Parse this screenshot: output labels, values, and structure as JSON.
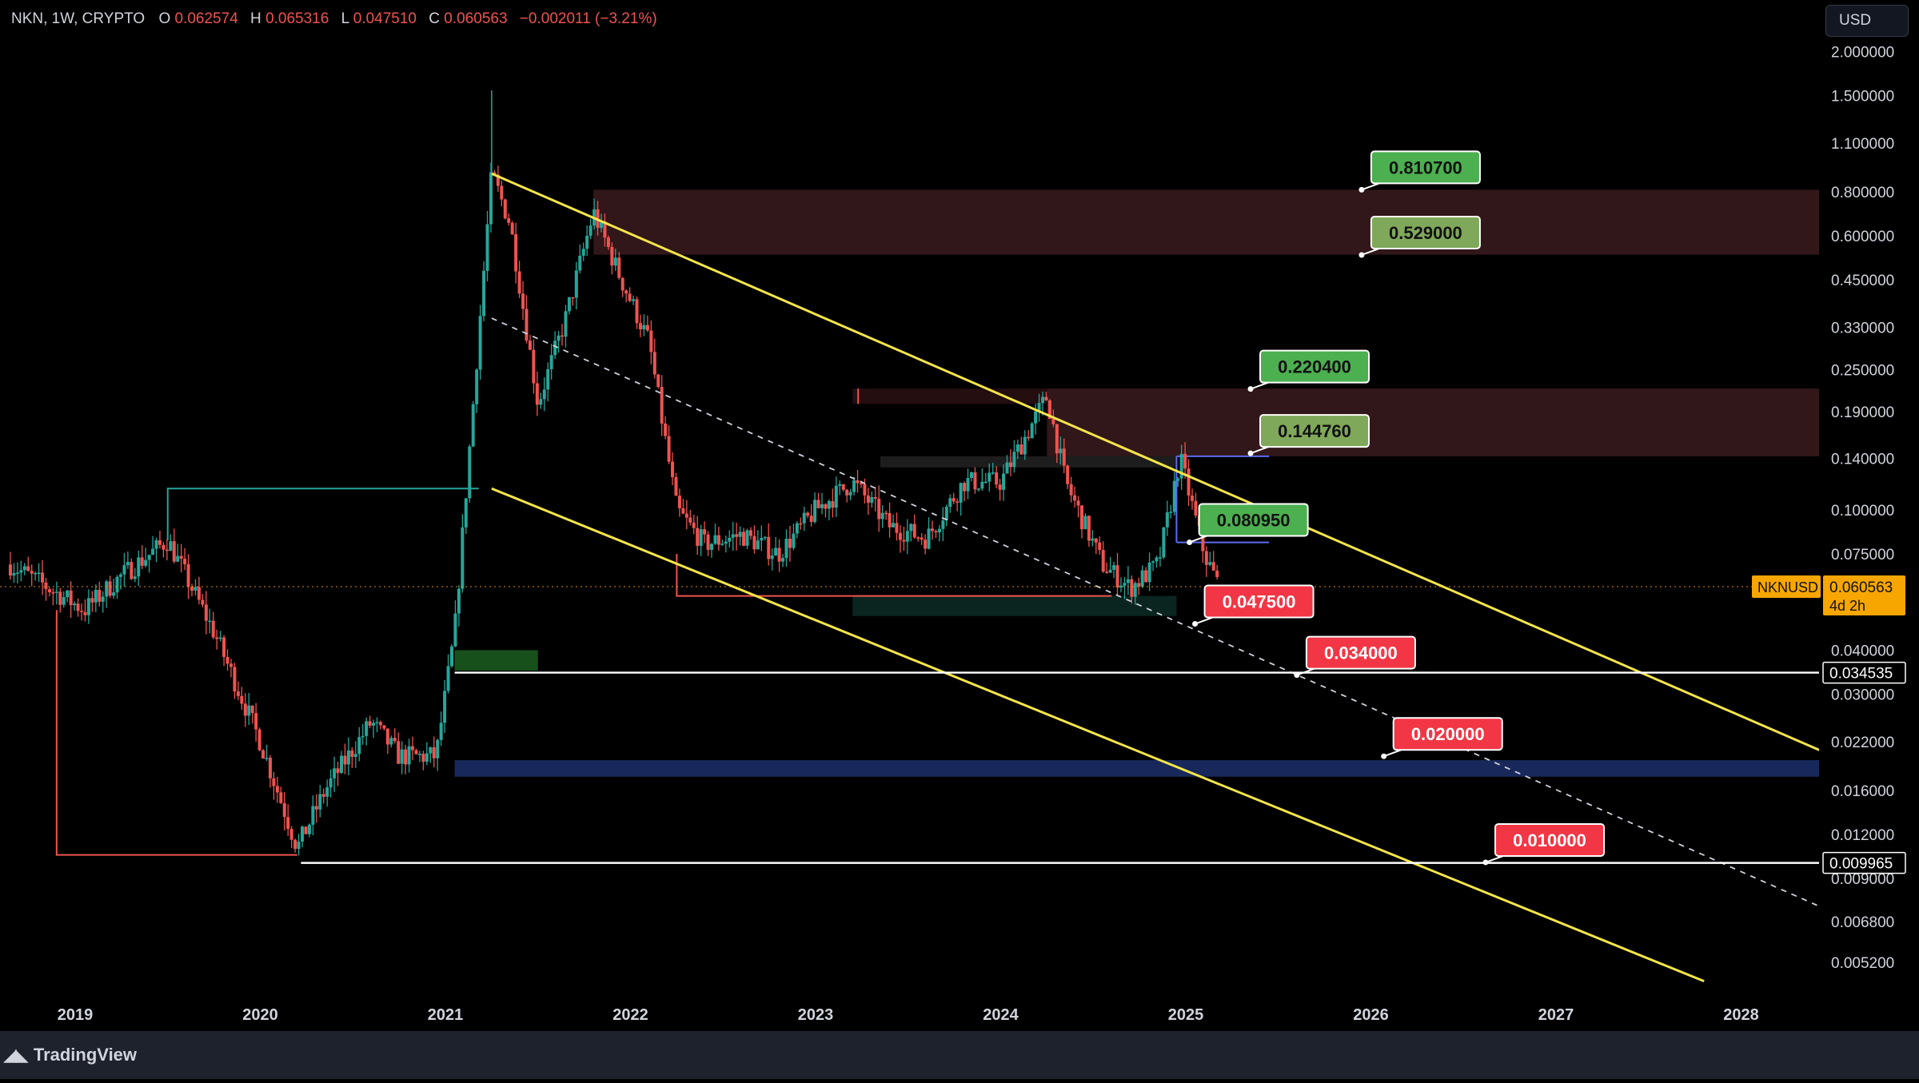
{
  "header": {
    "symbol": "NKN, 1W, CRYPTO",
    "o_label": "O",
    "o_value": "0.062574",
    "h_label": "H",
    "h_value": "0.065316",
    "l_label": "L",
    "l_value": "0.047510",
    "c_label": "C",
    "c_value": "0.060563",
    "change": "−0.002011 (−3.21%)"
  },
  "currency_button": {
    "label": "USD"
  },
  "footer": {
    "brand": "TradingView",
    "logo_icon": "tradingview-logo-icon"
  },
  "colors": {
    "up": "#26a69a",
    "down": "#ef5350",
    "channel": "#f5e54a",
    "label_green": "#4caf50",
    "label_red": "#f23645",
    "zone": "#4a2224"
  },
  "chart_data": {
    "type": "candlestick",
    "symbol": "NKNUSD",
    "timeframe": "1W",
    "scale": "log",
    "ylim": [
      0.0045,
      2.3
    ],
    "xlim": [
      2018.65,
      2028.5
    ],
    "grid": false,
    "y_ticks": [
      2.0,
      1.5,
      1.1,
      0.8,
      0.6,
      0.45,
      0.33,
      0.25,
      0.19,
      0.14,
      0.1,
      0.075,
      0.04,
      0.03,
      0.022,
      0.016,
      0.012,
      0.009,
      0.0068,
      0.0052
    ],
    "y_tick_labels": [
      "2.000000",
      "1.500000",
      "1.100000",
      "0.800000",
      "0.600000",
      "0.450000",
      "0.330000",
      "0.250000",
      "0.190000",
      "0.140000",
      "0.100000",
      "0.075000",
      "0.040000",
      "0.030000",
      "0.022000",
      "0.016000",
      "0.012000",
      "0.009000",
      "0.006800",
      "0.005200"
    ],
    "x_ticks": [
      2019,
      2020,
      2021,
      2022,
      2023,
      2024,
      2025,
      2026,
      2027,
      2028
    ],
    "x_tick_labels": [
      "2019",
      "2020",
      "2021",
      "2022",
      "2023",
      "2024",
      "2025",
      "2026",
      "2027",
      "2028"
    ],
    "anchors": [
      [
        2018.65,
        0.07
      ],
      [
        2019.05,
        0.052
      ],
      [
        2019.25,
        0.065
      ],
      [
        2019.5,
        0.082
      ],
      [
        2019.75,
        0.045
      ],
      [
        2020.0,
        0.022
      ],
      [
        2020.2,
        0.011
      ],
      [
        2020.35,
        0.016
      ],
      [
        2020.6,
        0.025
      ],
      [
        2020.75,
        0.02
      ],
      [
        2020.95,
        0.02
      ],
      [
        2021.05,
        0.045
      ],
      [
        2021.15,
        0.2
      ],
      [
        2021.25,
        0.9
      ],
      [
        2021.35,
        0.65
      ],
      [
        2021.5,
        0.2
      ],
      [
        2021.65,
        0.35
      ],
      [
        2021.8,
        0.7
      ],
      [
        2021.95,
        0.45
      ],
      [
        2022.1,
        0.3
      ],
      [
        2022.25,
        0.1
      ],
      [
        2022.4,
        0.08
      ],
      [
        2022.6,
        0.085
      ],
      [
        2022.8,
        0.075
      ],
      [
        2023.0,
        0.1
      ],
      [
        2023.2,
        0.12
      ],
      [
        2023.4,
        0.09
      ],
      [
        2023.6,
        0.083
      ],
      [
        2023.8,
        0.12
      ],
      [
        2024.0,
        0.12
      ],
      [
        2024.25,
        0.21
      ],
      [
        2024.35,
        0.12
      ],
      [
        2024.55,
        0.07
      ],
      [
        2024.7,
        0.06
      ],
      [
        2024.85,
        0.07
      ],
      [
        2024.97,
        0.14
      ],
      [
        2025.1,
        0.075
      ],
      [
        2025.18,
        0.0606
      ]
    ],
    "price_labels": [
      {
        "text": "0.810700",
        "value": 0.8107,
        "style": "green"
      },
      {
        "text": "0.529000",
        "value": 0.529,
        "style": "olive"
      },
      {
        "text": "0.220400",
        "value": 0.2204,
        "style": "green"
      },
      {
        "text": "0.144760",
        "value": 0.14476,
        "style": "olive"
      },
      {
        "text": "0.080950",
        "value": 0.08095,
        "style": "green"
      },
      {
        "text": "0.047500",
        "value": 0.0475,
        "style": "red"
      },
      {
        "text": "0.034000",
        "value": 0.034,
        "style": "red"
      },
      {
        "text": "0.020000",
        "value": 0.02,
        "style": "red"
      },
      {
        "text": "0.010000",
        "value": 0.01,
        "style": "red"
      }
    ],
    "horizontal_levels": [
      {
        "value": 0.034535,
        "text": "0.034535"
      },
      {
        "value": 0.009965,
        "text": "0.009965"
      }
    ],
    "last_price": {
      "value": 0.060563,
      "text": "0.060563",
      "symbol_tag": "NKNUSD",
      "countdown": "4d 2h"
    },
    "channel_upper": [
      [
        2021.25,
        0.9
      ],
      [
        2028.5,
        0.02
      ]
    ],
    "channel_lower": [
      [
        2021.25,
        0.115
      ],
      [
        2027.8,
        0.0046
      ]
    ],
    "channel_mid": [
      [
        2021.25,
        0.35
      ],
      [
        2028.5,
        0.0072
      ]
    ],
    "zones": [
      {
        "x": [
          2021.8,
          2028.5
        ],
        "y": [
          0.53,
          0.81
        ],
        "color": "#3a1b1e"
      },
      {
        "x": [
          2024.25,
          2028.5
        ],
        "y": [
          0.142,
          0.221
        ],
        "color": "#3a1b1e"
      },
      {
        "x": [
          2023.2,
          2024.25
        ],
        "y": [
          0.2,
          0.221
        ],
        "color": "#2a1113"
      },
      {
        "x": [
          2023.35,
          2024.95
        ],
        "y": [
          0.132,
          0.142
        ],
        "color": "#222"
      },
      {
        "x": [
          2023.2,
          2024.95
        ],
        "y": [
          0.05,
          0.057
        ],
        "color": "#0c2b24"
      },
      {
        "x": [
          2021.05,
          2021.5
        ],
        "y": [
          0.035,
          0.04
        ],
        "color": "#1b5e20"
      },
      {
        "x": [
          2021.05,
          2028.5
        ],
        "y": [
          0.0175,
          0.0195
        ],
        "color": "#1c2f6b"
      }
    ]
  }
}
